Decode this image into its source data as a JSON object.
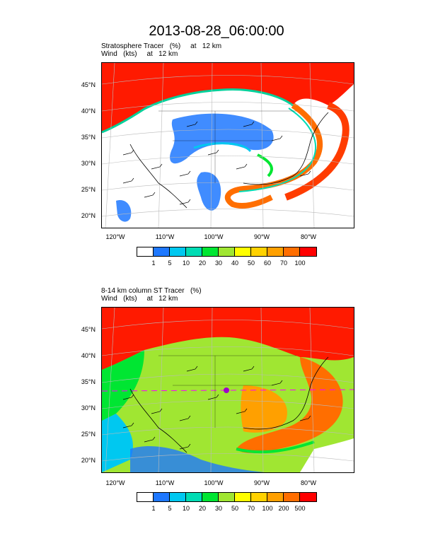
{
  "title": "2013-08-28_06:00:00",
  "panels": [
    {
      "subtitle_line1": "Stratosphere Tracer   (%)     at   12 km",
      "subtitle_line2": "Wind   (kts)     at   12 km",
      "lat_labels": [
        "45°N",
        "40°N",
        "35°N",
        "30°N",
        "25°N",
        "20°N"
      ],
      "lon_labels": [
        "120°W",
        "110°W",
        "100°W",
        "90°W",
        "80°W"
      ],
      "colorbar_labels": [
        "1",
        "5",
        "10",
        "20",
        "30",
        "40",
        "50",
        "60",
        "70",
        "100"
      ],
      "colorbar_colors": [
        "#ffffff",
        "#1e78ff",
        "#00c8f0",
        "#00dcb4",
        "#00e632",
        "#a0e632",
        "#ffff00",
        "#ffd200",
        "#ffa000",
        "#ff6e00",
        "#ff0000"
      ]
    },
    {
      "subtitle_line1": "8-14 km column ST Tracer   (%)",
      "subtitle_line2": "Wind   (kts)     at   12 km",
      "lat_labels": [
        "45°N",
        "40°N",
        "35°N",
        "30°N",
        "25°N",
        "20°N"
      ],
      "lon_labels": [
        "120°W",
        "110°W",
        "100°W",
        "90°W",
        "80°W"
      ],
      "colorbar_labels": [
        "1",
        "5",
        "10",
        "20",
        "30",
        "50",
        "70",
        "100",
        "200",
        "500"
      ],
      "colorbar_colors": [
        "#ffffff",
        "#1e78ff",
        "#00c8f0",
        "#00dcb4",
        "#00e632",
        "#a0e632",
        "#ffff00",
        "#ffd200",
        "#ffa000",
        "#ff6e00",
        "#ff0000"
      ]
    }
  ]
}
